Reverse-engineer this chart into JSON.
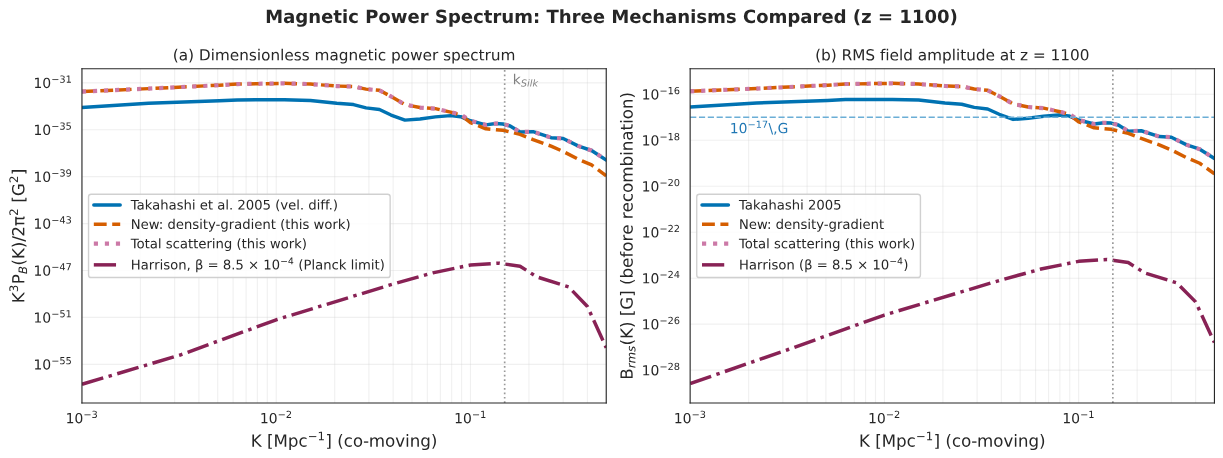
{
  "chart_data": [
    {
      "type": "line",
      "title": "(a) Dimensionless magnetic power spectrum",
      "annotations": [
        "Magnetic Power Spectrum: Three Mechanisms Compared (z = 1100)"
      ],
      "xlabel": "K [Mpc$^{−1}$] (co-moving)",
      "ylabel": "K$^{3}$P$_{B}$(K)/2π$^{2}$ [G$^{2}$]",
      "log": "xy",
      "grid": true,
      "legend": "center left",
      "xlim": [
        0.001,
        0.5
      ],
      "xticks": [
        {
          "value": 0.001,
          "label": "10$^{−3}$"
        },
        {
          "value": 0.01,
          "label": "10$^{−2}$"
        },
        {
          "value": 0.1,
          "label": "10$^{−1}$"
        }
      ],
      "ylim": [
        5e-59,
        1.6e-30
      ],
      "yticks": [
        {
          "value": 1e-31,
          "label": "10$^{−31}$"
        },
        {
          "value": 1e-35,
          "label": "10$^{−35}$"
        },
        {
          "value": 1e-39,
          "label": "10$^{−39}$"
        },
        {
          "value": 1e-43,
          "label": "10$^{−43}$"
        },
        {
          "value": 1e-47,
          "label": "10$^{−47}$"
        },
        {
          "value": 1e-51,
          "label": "10$^{−51}$"
        },
        {
          "value": 1e-55,
          "label": "10$^{−55}$"
        }
      ],
      "ref_lines": [
        {
          "axis": "x",
          "value": 0.15,
          "label": "k$_{Silk}$",
          "color": "#999999",
          "line_style": "dotted"
        }
      ],
      "series": [
        {
          "name": "Takahashi et al. 2005 (vel. diff.)",
          "color": "#0072b2",
          "line_style": "solid",
          "x": [
            0.001,
            0.0022,
            0.0051,
            0.0063,
            0.011,
            0.015,
            0.0205,
            0.025,
            0.029,
            0.034,
            0.039,
            0.046,
            0.055,
            0.066,
            0.079,
            0.089,
            0.1,
            0.12,
            0.135,
            0.147,
            0.16,
            0.18,
            0.21,
            0.26,
            0.3,
            0.36,
            0.42,
            0.5
          ],
          "values": [
            7.8e-34,
            1.8e-33,
            2.9e-33,
            3.5e-33,
            3.6e-33,
            3.1e-33,
            1.8e-33,
            1.4e-33,
            7.3e-34,
            5.3e-34,
            1.8e-34,
            6.6e-35,
            8.3e-35,
            1.25e-34,
            1.6e-34,
            1.3e-34,
            5.8e-35,
            2.6e-35,
            3.4e-35,
            3.1e-35,
            2.1e-35,
            6.3e-36,
            6.8e-36,
            2.1e-36,
            1.8e-36,
            4e-37,
            1.7e-37,
            2.6e-38
          ]
        },
        {
          "name": "New: density-gradient (this work)",
          "color": "#d55e00",
          "line_style": "dashed",
          "x": [
            0.001,
            0.0022,
            0.0051,
            0.0063,
            0.011,
            0.015,
            0.0205,
            0.025,
            0.029,
            0.034,
            0.039,
            0.046,
            0.055,
            0.066,
            0.079,
            0.089,
            0.1,
            0.12,
            0.147,
            0.18,
            0.21,
            0.26,
            0.3,
            0.36,
            0.42,
            0.5
          ],
          "values": [
            1.8e-32,
            3.2e-32,
            6.3e-32,
            7.8e-32,
            9e-32,
            7.8e-32,
            5.3e-32,
            4.8e-32,
            2.9e-32,
            2.3e-32,
            6.9e-33,
            1.4e-33,
            7.8e-34,
            6.3e-34,
            3.2e-34,
            1.8e-34,
            4e-35,
            1.2e-35,
            9e-36,
            4e-36,
            1.44e-36,
            4e-37,
            1.4e-37,
            3e-38,
            1e-38,
            1.2e-39
          ]
        },
        {
          "name": "Total scattering (this work)",
          "color": "#cc79a7",
          "line_style": "dotted",
          "x": [
            0.001,
            0.0022,
            0.0051,
            0.0063,
            0.011,
            0.015,
            0.0205,
            0.025,
            0.029,
            0.034,
            0.039,
            0.046,
            0.055,
            0.066,
            0.079,
            0.089,
            0.1,
            0.12,
            0.135,
            0.147,
            0.16,
            0.18,
            0.21,
            0.26,
            0.3,
            0.36,
            0.42,
            0.5
          ],
          "values": [
            1.8e-32,
            3.2e-32,
            6.3e-32,
            7.8e-32,
            9e-32,
            7.8e-32,
            5.3e-32,
            4.8e-32,
            2.9e-32,
            2.3e-32,
            6.9e-33,
            1.4e-33,
            7.8e-34,
            6.3e-34,
            3.2e-34,
            2e-34,
            5.8e-35,
            2.6e-35,
            3.4e-35,
            3.1e-35,
            2.1e-35,
            6.3e-36,
            6.8e-36,
            2.1e-36,
            1.8e-36,
            4e-37,
            1.7e-37,
            2.6e-38
          ]
        },
        {
          "name": "Harrison, β = 8.5 × 10$^{−4}$ (Planck limit)",
          "color": "#882255",
          "line_style": "dashdot",
          "x": [
            0.001,
            0.0032,
            0.01,
            0.039,
            0.064,
            0.1,
            0.14,
            0.18,
            0.22,
            0.32,
            0.4,
            0.5
          ],
          "values": [
            2e-57,
            6.2e-55,
            6.3e-52,
            6.2e-49,
            6.3e-48,
            2.9e-47,
            4.2e-47,
            2.3e-47,
            2.8e-48,
            4e-49,
            8.6e-51,
            2.6e-54
          ]
        }
      ]
    },
    {
      "type": "line",
      "title": "(b) RMS field amplitude at z = 1100",
      "xlabel": "K [Mpc$^{−1}$] (co-moving)",
      "ylabel": "B$_{rms}$(K) [G] (before recombination)",
      "log": "xy",
      "grid": true,
      "legend": "center left",
      "xlim": [
        0.001,
        0.5
      ],
      "xticks": [
        {
          "value": 0.001,
          "label": "10$^{−3}$"
        },
        {
          "value": 0.01,
          "label": "10$^{−2}$"
        },
        {
          "value": 0.1,
          "label": "10$^{−1}$"
        }
      ],
      "ylim": [
        3.7e-30,
        1.3e-15
      ],
      "yticks": [
        {
          "value": 1e-16,
          "label": "10$^{−16}$"
        },
        {
          "value": 1e-18,
          "label": "10$^{−18}$"
        },
        {
          "value": 1e-20,
          "label": "10$^{−20}$"
        },
        {
          "value": 1e-22,
          "label": "10$^{−22}$"
        },
        {
          "value": 1e-24,
          "label": "10$^{−24}$"
        },
        {
          "value": 1e-26,
          "label": "10$^{−26}$"
        },
        {
          "value": 1e-28,
          "label": "10$^{−28}$"
        }
      ],
      "ref_lines": [
        {
          "axis": "x",
          "value": 0.15,
          "color": "#999999",
          "line_style": "dotted"
        },
        {
          "axis": "y",
          "value": 1e-17,
          "label": "10$^{−17}$\\,G",
          "color": "#6baed6",
          "line_style": "dashed"
        }
      ],
      "series": [
        {
          "name": "Takahashi 2005",
          "color": "#0072b2",
          "line_style": "solid",
          "x": [
            0.001,
            0.0022,
            0.0051,
            0.0063,
            0.011,
            0.015,
            0.0205,
            0.025,
            0.029,
            0.034,
            0.039,
            0.046,
            0.055,
            0.066,
            0.079,
            0.089,
            0.1,
            0.12,
            0.135,
            0.147,
            0.16,
            0.18,
            0.21,
            0.26,
            0.3,
            0.36,
            0.42,
            0.5
          ],
          "values": [
            2.8e-17,
            4.2e-17,
            5.4e-17,
            5.9e-17,
            6e-17,
            5.6e-17,
            4.2e-17,
            3.7e-17,
            2.7e-17,
            2.3e-17,
            1.35e-17,
            8.1e-18,
            9.1e-18,
            1.12e-17,
            1.26e-17,
            1.15e-17,
            7.6e-18,
            5.1e-18,
            5.8e-18,
            5.6e-18,
            4.6e-18,
            2.5e-18,
            2.6e-18,
            1.45e-18,
            1.35e-18,
            6.3e-19,
            4.1e-19,
            1.6e-19
          ]
        },
        {
          "name": "New: density-gradient",
          "color": "#d55e00",
          "line_style": "dashed",
          "x": [
            0.001,
            0.0022,
            0.0051,
            0.0063,
            0.011,
            0.015,
            0.0205,
            0.025,
            0.029,
            0.034,
            0.039,
            0.046,
            0.055,
            0.066,
            0.079,
            0.089,
            0.1,
            0.12,
            0.147,
            0.18,
            0.21,
            0.26,
            0.3,
            0.36,
            0.42,
            0.5
          ],
          "values": [
            1.35e-16,
            1.78e-16,
            2.5e-16,
            2.8e-16,
            3e-16,
            2.8e-16,
            2.3e-16,
            2.2e-16,
            1.7e-16,
            1.5e-16,
            8.3e-17,
            3.8e-17,
            2.8e-17,
            2.5e-17,
            1.78e-17,
            1.35e-17,
            6.3e-18,
            3.5e-18,
            3e-18,
            2e-18,
            1.2e-18,
            6.3e-19,
            3.8e-19,
            1.74e-19,
            1e-19,
            3.5e-20
          ]
        },
        {
          "name": "Total scattering (this work)",
          "color": "#cc79a7",
          "line_style": "dotted",
          "x": [
            0.001,
            0.0022,
            0.0051,
            0.0063,
            0.011,
            0.015,
            0.0205,
            0.025,
            0.029,
            0.034,
            0.039,
            0.046,
            0.055,
            0.066,
            0.079,
            0.089,
            0.1,
            0.12,
            0.135,
            0.147,
            0.16,
            0.18,
            0.21,
            0.26,
            0.3,
            0.36,
            0.42,
            0.5
          ],
          "values": [
            1.35e-16,
            1.78e-16,
            2.5e-16,
            2.8e-16,
            3e-16,
            2.8e-16,
            2.3e-16,
            2.2e-16,
            1.7e-16,
            1.5e-16,
            8.3e-17,
            3.8e-17,
            2.8e-17,
            2.5e-17,
            1.78e-17,
            1.4e-17,
            7.6e-18,
            5.1e-18,
            5.8e-18,
            5.6e-18,
            4.6e-18,
            2.5e-18,
            2.6e-18,
            1.45e-18,
            1.35e-18,
            6.3e-19,
            4.1e-19,
            1.6e-19
          ]
        },
        {
          "name": "Harrison (β = 8.5 × 10$^{−4}$)",
          "color": "#882255",
          "line_style": "dashdot",
          "x": [
            0.001,
            0.0032,
            0.01,
            0.039,
            0.064,
            0.1,
            0.14,
            0.18,
            0.22,
            0.32,
            0.4,
            0.5
          ],
          "values": [
            2.6e-29,
            7.9e-28,
            2.5e-26,
            7.9e-25,
            2.5e-24,
            5.4e-24,
            6.5e-24,
            4.8e-24,
            1.66e-24,
            6.3e-25,
            9.3e-26,
            1.6e-27
          ]
        }
      ]
    }
  ]
}
